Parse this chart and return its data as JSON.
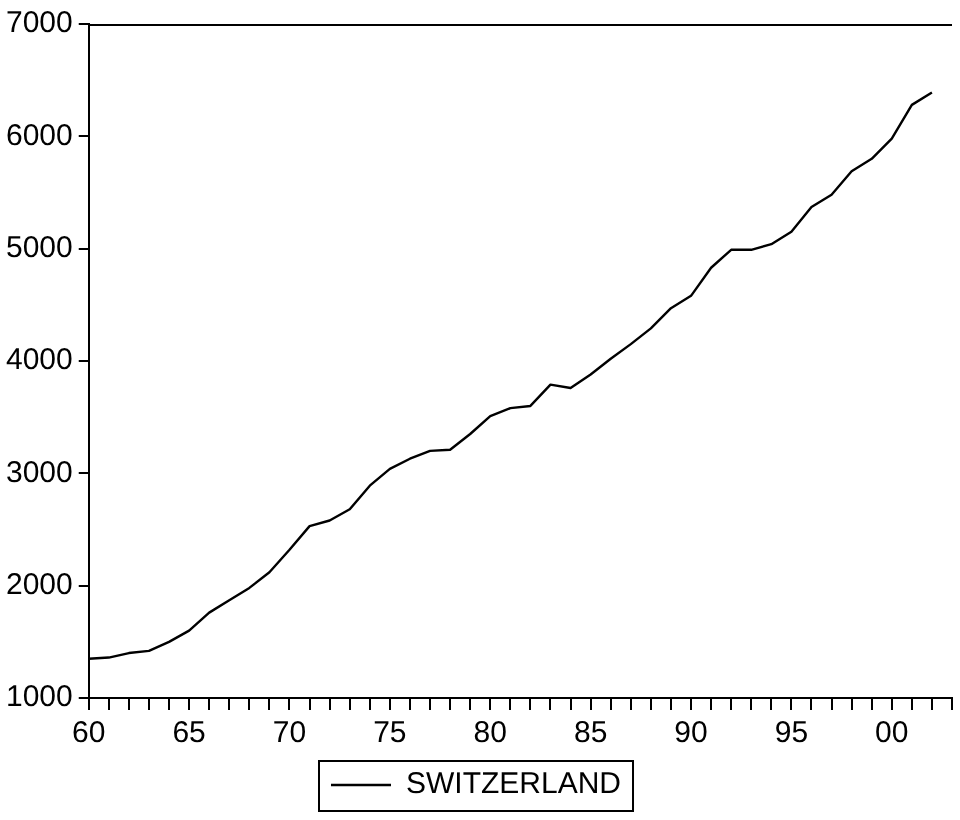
{
  "chart_data": {
    "type": "line",
    "x": [
      1960,
      1961,
      1962,
      1963,
      1964,
      1965,
      1966,
      1967,
      1968,
      1969,
      1970,
      1971,
      1972,
      1973,
      1974,
      1975,
      1976,
      1977,
      1978,
      1979,
      1980,
      1981,
      1982,
      1983,
      1984,
      1985,
      1986,
      1987,
      1988,
      1989,
      1990,
      1991,
      1992,
      1993,
      1994,
      1995,
      1996,
      1997,
      1998,
      1999,
      2000,
      2001,
      2002
    ],
    "series": [
      {
        "name": "SWITZERLAND",
        "color": "#000000",
        "values": [
          1350,
          1360,
          1400,
          1420,
          1500,
          1600,
          1760,
          1870,
          1980,
          2120,
          2320,
          2530,
          2580,
          2680,
          2890,
          3040,
          3130,
          3200,
          3210,
          3350,
          3510,
          3580,
          3600,
          3790,
          3760,
          3880,
          4020,
          4150,
          4290,
          4470,
          4580,
          4830,
          4990,
          4990,
          5040,
          5150,
          5370,
          5480,
          5690,
          5800,
          5980,
          6280,
          6390
        ]
      }
    ],
    "xlim": [
      1960,
      2003
    ],
    "xticks": [
      {
        "value": 1960,
        "label": "60"
      },
      {
        "value": 1961,
        "label": null
      },
      {
        "value": 1962,
        "label": null
      },
      {
        "value": 1963,
        "label": null
      },
      {
        "value": 1964,
        "label": null
      },
      {
        "value": 1965,
        "label": "65"
      },
      {
        "value": 1966,
        "label": null
      },
      {
        "value": 1967,
        "label": null
      },
      {
        "value": 1968,
        "label": null
      },
      {
        "value": 1969,
        "label": null
      },
      {
        "value": 1970,
        "label": "70"
      },
      {
        "value": 1971,
        "label": null
      },
      {
        "value": 1972,
        "label": null
      },
      {
        "value": 1973,
        "label": null
      },
      {
        "value": 1974,
        "label": null
      },
      {
        "value": 1975,
        "label": "75"
      },
      {
        "value": 1976,
        "label": null
      },
      {
        "value": 1977,
        "label": null
      },
      {
        "value": 1978,
        "label": null
      },
      {
        "value": 1979,
        "label": null
      },
      {
        "value": 1980,
        "label": "80"
      },
      {
        "value": 1981,
        "label": null
      },
      {
        "value": 1982,
        "label": null
      },
      {
        "value": 1983,
        "label": null
      },
      {
        "value": 1984,
        "label": null
      },
      {
        "value": 1985,
        "label": "85"
      },
      {
        "value": 1986,
        "label": null
      },
      {
        "value": 1987,
        "label": null
      },
      {
        "value": 1988,
        "label": null
      },
      {
        "value": 1989,
        "label": null
      },
      {
        "value": 1990,
        "label": "90"
      },
      {
        "value": 1991,
        "label": null
      },
      {
        "value": 1992,
        "label": null
      },
      {
        "value": 1993,
        "label": null
      },
      {
        "value": 1994,
        "label": null
      },
      {
        "value": 1995,
        "label": "95"
      },
      {
        "value": 1996,
        "label": null
      },
      {
        "value": 1997,
        "label": null
      },
      {
        "value": 1998,
        "label": null
      },
      {
        "value": 1999,
        "label": null
      },
      {
        "value": 2000,
        "label": "00"
      },
      {
        "value": 2001,
        "label": null
      },
      {
        "value": 2002,
        "label": null
      },
      {
        "value": 2003,
        "label": null
      }
    ],
    "ylim": [
      1000,
      7000
    ],
    "yticks": [
      1000,
      2000,
      3000,
      4000,
      5000,
      6000,
      7000
    ],
    "grid": false,
    "legend": "bottom",
    "marker": "none",
    "line_style": "solid"
  }
}
